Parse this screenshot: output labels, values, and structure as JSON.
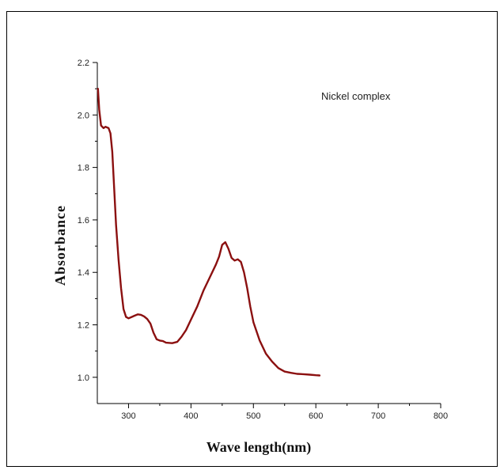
{
  "chart_data": {
    "type": "line",
    "title": "",
    "annotation": "Nickel complex",
    "xlabel": "Wave length(nm)",
    "ylabel": "Absorbance",
    "xlim": [
      250,
      800
    ],
    "ylim": [
      0.9,
      2.2
    ],
    "x_ticks": [
      300,
      400,
      500,
      600,
      700,
      800
    ],
    "y_ticks": [
      1.0,
      1.2,
      1.4,
      1.6,
      1.8,
      2.0,
      2.2
    ],
    "grid": false,
    "series": [
      {
        "color": "#8b1010",
        "x": [
          251,
          253,
          256,
          260,
          263,
          268,
          271,
          274,
          277,
          280,
          284,
          288,
          292,
          296,
          300,
          305,
          310,
          315,
          320,
          325,
          330,
          335,
          340,
          345,
          350,
          355,
          360,
          370,
          378,
          385,
          392,
          400,
          410,
          420,
          430,
          440,
          445,
          450,
          455,
          460,
          465,
          470,
          475,
          480,
          485,
          490,
          495,
          500,
          510,
          520,
          530,
          540,
          550,
          560,
          570,
          580,
          590,
          600,
          606
        ],
        "y": [
          2.1,
          2.02,
          1.96,
          1.95,
          1.955,
          1.95,
          1.93,
          1.86,
          1.72,
          1.58,
          1.45,
          1.34,
          1.26,
          1.23,
          1.225,
          1.23,
          1.235,
          1.24,
          1.238,
          1.232,
          1.222,
          1.205,
          1.17,
          1.145,
          1.14,
          1.138,
          1.132,
          1.13,
          1.135,
          1.155,
          1.18,
          1.22,
          1.27,
          1.33,
          1.38,
          1.43,
          1.46,
          1.505,
          1.515,
          1.49,
          1.455,
          1.445,
          1.45,
          1.44,
          1.4,
          1.34,
          1.27,
          1.21,
          1.14,
          1.09,
          1.06,
          1.035,
          1.022,
          1.017,
          1.013,
          1.012,
          1.01,
          1.008,
          1.007
        ]
      }
    ]
  }
}
